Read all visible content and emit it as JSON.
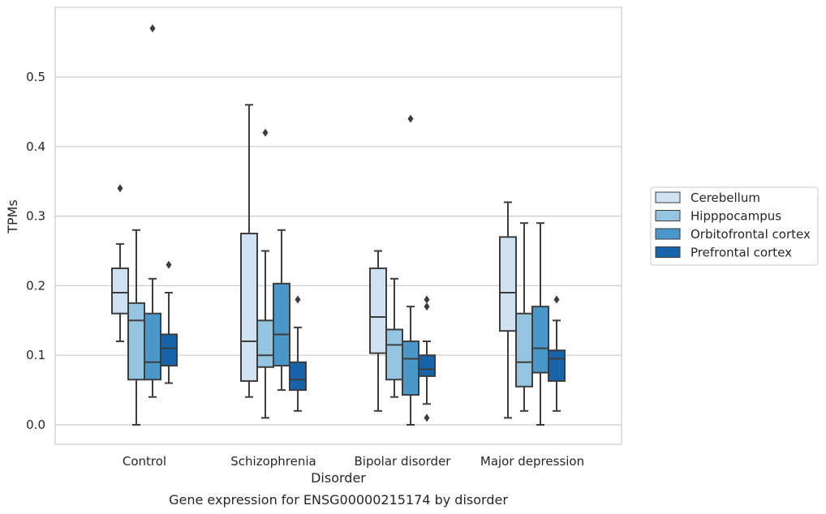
{
  "chart_data": {
    "type": "boxplot",
    "title": "",
    "caption": "Gene expression for ENSG00000215174 by disorder",
    "xlabel": "Disorder",
    "ylabel": "TPMs",
    "ylim": [
      -0.028,
      0.6
    ],
    "yticks": [
      "0.0",
      "0.1",
      "0.2",
      "0.3",
      "0.4",
      "0.5"
    ],
    "grid": "horizontal",
    "legend_position": "right",
    "categories": [
      "Control",
      "Schizophrenia",
      "Bipolar disorder",
      "Major depression"
    ],
    "series": [
      {
        "name": "Cerebellum",
        "color": "#d0e1f2",
        "boxes": [
          {
            "q1": 0.16,
            "median": 0.19,
            "q3": 0.225,
            "whisker_low": 0.12,
            "whisker_high": 0.26,
            "outliers": [
              0.34
            ]
          },
          {
            "q1": 0.063,
            "median": 0.12,
            "q3": 0.275,
            "whisker_low": 0.04,
            "whisker_high": 0.46,
            "outliers": []
          },
          {
            "q1": 0.103,
            "median": 0.155,
            "q3": 0.225,
            "whisker_low": 0.02,
            "whisker_high": 0.25,
            "outliers": []
          },
          {
            "q1": 0.135,
            "median": 0.19,
            "q3": 0.27,
            "whisker_low": 0.01,
            "whisker_high": 0.32,
            "outliers": []
          }
        ]
      },
      {
        "name": "Hipppocampus",
        "color": "#94c4df",
        "boxes": [
          {
            "q1": 0.065,
            "median": 0.15,
            "q3": 0.175,
            "whisker_low": 0.0,
            "whisker_high": 0.28,
            "outliers": []
          },
          {
            "q1": 0.083,
            "median": 0.1,
            "q3": 0.15,
            "whisker_low": 0.01,
            "whisker_high": 0.25,
            "outliers": [
              0.42
            ]
          },
          {
            "q1": 0.065,
            "median": 0.115,
            "q3": 0.137,
            "whisker_low": 0.04,
            "whisker_high": 0.21,
            "outliers": []
          },
          {
            "q1": 0.055,
            "median": 0.09,
            "q3": 0.16,
            "whisker_low": 0.02,
            "whisker_high": 0.29,
            "outliers": []
          }
        ]
      },
      {
        "name": "Orbitofrontal cortex",
        "color": "#4a98c9",
        "boxes": [
          {
            "q1": 0.065,
            "median": 0.09,
            "q3": 0.16,
            "whisker_low": 0.04,
            "whisker_high": 0.21,
            "outliers": [
              0.57
            ]
          },
          {
            "q1": 0.085,
            "median": 0.13,
            "q3": 0.203,
            "whisker_low": 0.05,
            "whisker_high": 0.28,
            "outliers": []
          },
          {
            "q1": 0.043,
            "median": 0.095,
            "q3": 0.12,
            "whisker_low": 0.0,
            "whisker_high": 0.17,
            "outliers": [
              0.44
            ]
          },
          {
            "q1": 0.075,
            "median": 0.11,
            "q3": 0.17,
            "whisker_low": 0.0,
            "whisker_high": 0.29,
            "outliers": []
          }
        ]
      },
      {
        "name": "Prefrontal cortex",
        "color": "#1764ab",
        "boxes": [
          {
            "q1": 0.085,
            "median": 0.11,
            "q3": 0.13,
            "whisker_low": 0.06,
            "whisker_high": 0.19,
            "outliers": [
              0.23
            ]
          },
          {
            "q1": 0.05,
            "median": 0.065,
            "q3": 0.09,
            "whisker_low": 0.02,
            "whisker_high": 0.14,
            "outliers": [
              0.18
            ]
          },
          {
            "q1": 0.07,
            "median": 0.08,
            "q3": 0.1,
            "whisker_low": 0.03,
            "whisker_high": 0.12,
            "outliers": [
              0.17,
              0.18,
              0.01
            ]
          },
          {
            "q1": 0.063,
            "median": 0.095,
            "q3": 0.107,
            "whisker_low": 0.02,
            "whisker_high": 0.15,
            "outliers": [
              0.18
            ]
          }
        ]
      }
    ]
  }
}
